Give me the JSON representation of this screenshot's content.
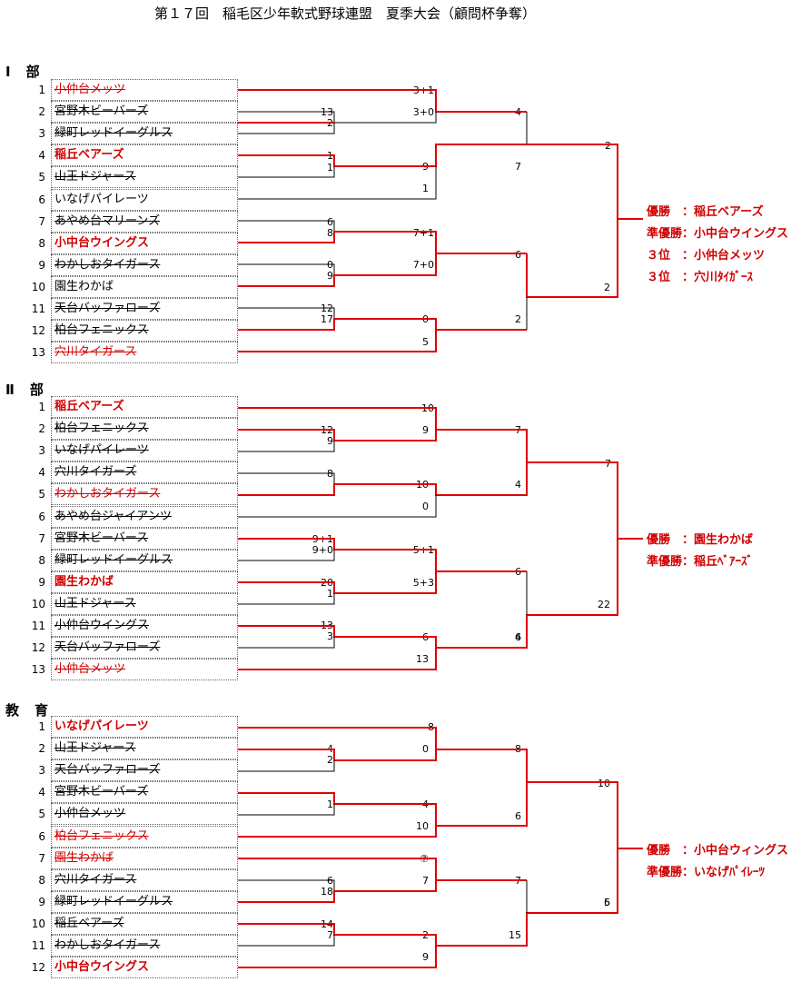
{
  "title": "第１７回　稲毛区少年軟式野球連盟　夏季大会（顧問杯争奪）",
  "colors": {
    "winner_line": "#e00000",
    "line": "#000000",
    "winner_text": "#d00000"
  },
  "sections": [
    {
      "name": "Ⅰ　部",
      "teams": [
        {
          "no": "1",
          "name": "小仲台メッツ",
          "style": "red-out"
        },
        {
          "no": "2",
          "name": "宮野木ビーバーズ",
          "style": "out"
        },
        {
          "no": "3",
          "name": "緑町レッドイーグルス",
          "style": "out"
        },
        {
          "no": "4",
          "name": "稲丘ベアーズ",
          "style": "win"
        },
        {
          "no": "5",
          "name": "山王ドジャース",
          "style": "out"
        },
        {
          "no": "6",
          "name": "いなげパイレーツ",
          "style": "plain"
        },
        {
          "no": "7",
          "name": "あやめ台マリーンズ",
          "style": "out"
        },
        {
          "no": "8",
          "name": "小中台ウイングス",
          "style": "win"
        },
        {
          "no": "9",
          "name": "わかしおタイガース",
          "style": "out"
        },
        {
          "no": "10",
          "name": "園生わかば",
          "style": "plain"
        },
        {
          "no": "11",
          "name": "天台バッファローズ",
          "style": "out"
        },
        {
          "no": "12",
          "name": "柏台フェニックス",
          "style": "out"
        },
        {
          "no": "13",
          "name": "穴川タイガース",
          "style": "red-out"
        }
      ],
      "scores": [
        "3+1",
        "3+0",
        "13",
        "2",
        "4",
        "2",
        "1",
        "9",
        "7",
        "1",
        "2",
        "1",
        "6",
        "8",
        "7+1",
        "0",
        "9",
        "7+0",
        "6",
        "12",
        "17",
        "0",
        "5",
        "2"
      ],
      "standings": [
        "優勝　：稲丘ベアーズ",
        "準優勝：小中台ウイングス",
        "３位　：小仲台メッツ",
        "３位　：穴川ﾀｲｶﾞｰｽ"
      ]
    },
    {
      "name": "Ⅱ　部",
      "teams": [
        {
          "no": "1",
          "name": "稲丘ベアーズ",
          "style": "win"
        },
        {
          "no": "2",
          "name": "柏台フェニックス",
          "style": "out"
        },
        {
          "no": "3",
          "name": "いなげパイレーツ",
          "style": "out"
        },
        {
          "no": "4",
          "name": "穴川タイガーズ",
          "style": "out"
        },
        {
          "no": "5",
          "name": "わかしおタイガース",
          "style": "red-out"
        },
        {
          "no": "6",
          "name": "あやめ台ジャイアンツ",
          "style": "out"
        },
        {
          "no": "7",
          "name": "宮野木ビーバース",
          "style": "out"
        },
        {
          "no": "8",
          "name": "緑町レッドイーグルス",
          "style": "out"
        },
        {
          "no": "9",
          "name": "園生わかば",
          "style": "win"
        },
        {
          "no": "10",
          "name": "山王ドジャース",
          "style": "out"
        },
        {
          "no": "11",
          "name": "小仲台ウイングス",
          "style": "out"
        },
        {
          "no": "12",
          "name": "天台バッファローズ",
          "style": "out"
        },
        {
          "no": "13",
          "name": "小仲台メッツ",
          "style": "red-out"
        }
      ],
      "scores": [
        "10",
        "12",
        "9",
        "9",
        "7",
        "7",
        "8",
        "10",
        "0",
        "4",
        "6",
        "9+1",
        "9+0",
        "5+1",
        "20",
        "1",
        "5+3",
        "6",
        "13",
        "3",
        "6",
        "13",
        "4",
        "22"
      ],
      "standings": [
        "優勝　：園生わかば",
        "準優勝：稲丘ﾍﾞｱｰｽﾞ"
      ]
    },
    {
      "name": "教　育",
      "teams": [
        {
          "no": "1",
          "name": "いなげパイレーツ",
          "style": "win"
        },
        {
          "no": "2",
          "name": "山王ドジャース",
          "style": "out"
        },
        {
          "no": "3",
          "name": "天台バッファローズ",
          "style": "out"
        },
        {
          "no": "4",
          "name": "宮野木ビーバーズ",
          "style": "out"
        },
        {
          "no": "5",
          "name": "小仲台メッツ",
          "style": "out"
        },
        {
          "no": "6",
          "name": "柏台フェニックス",
          "style": "red-out"
        },
        {
          "no": "7",
          "name": "園生わかば",
          "style": "red-out"
        },
        {
          "no": "8",
          "name": "穴川タイガース",
          "style": "out"
        },
        {
          "no": "9",
          "name": "緑町レッドイーグルス",
          "style": "out"
        },
        {
          "no": "10",
          "name": "稲丘ベアーズ",
          "style": "out"
        },
        {
          "no": "11",
          "name": "わかしおタイガース",
          "style": "out"
        },
        {
          "no": "12",
          "name": "小中台ウイングス",
          "style": "win"
        }
      ],
      "scores": [
        "8",
        "4",
        "2",
        "0",
        "8",
        "10",
        "1",
        "4",
        "10",
        "6",
        "5",
        "⑦",
        "6",
        "18",
        "7",
        "7",
        "14",
        "7",
        "2",
        "9",
        "15",
        "6"
      ],
      "standings": [
        "優勝　：小中台ウィングス",
        "準優勝：いなげﾊﾟｲﾚｰﾂ"
      ]
    }
  ]
}
